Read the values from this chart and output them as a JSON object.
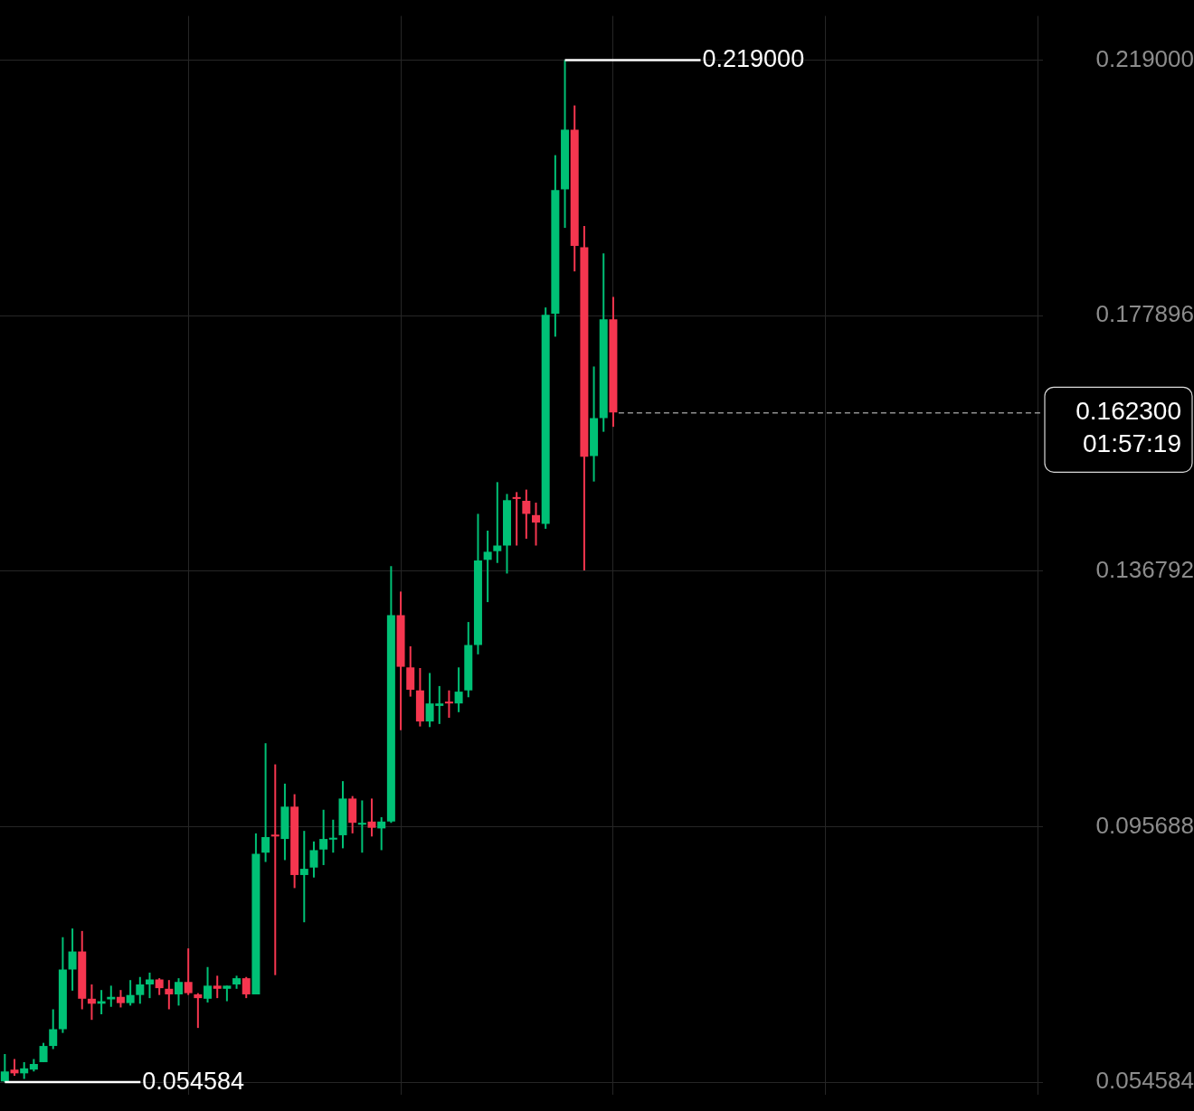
{
  "chart_data": {
    "type": "candlestick",
    "categories": [
      null,
      null,
      null,
      null,
      null,
      null,
      null,
      null,
      null,
      null,
      null,
      null,
      null,
      null,
      null,
      null,
      null,
      null,
      null,
      null,
      null,
      null,
      null,
      null,
      null,
      null,
      null,
      null,
      null,
      null,
      null,
      null,
      null,
      null,
      null,
      null,
      null,
      null,
      null,
      null,
      null,
      null,
      null,
      null,
      null,
      null,
      null,
      null,
      null,
      null,
      null,
      null,
      null,
      null,
      null,
      null,
      null,
      null,
      null,
      null,
      null,
      null,
      null,
      null,
      null,
      null,
      null,
      null,
      null,
      null,
      null,
      null,
      null,
      null,
      null,
      null,
      null,
      null,
      null,
      null,
      null,
      null,
      null,
      null,
      null,
      null,
      null,
      null,
      null,
      null,
      null,
      null,
      null,
      null,
      null,
      null,
      null,
      null,
      null,
      null,
      null,
      null,
      null,
      null,
      null,
      null,
      null,
      null
    ],
    "ohlc": [
      [
        0.0547,
        0.0591,
        0.054584,
        0.0563
      ],
      [
        0.0566,
        0.0583,
        0.0556,
        0.056
      ],
      [
        0.056,
        0.0578,
        0.0551,
        0.0568
      ],
      [
        0.0566,
        0.0583,
        0.0563,
        0.0575
      ],
      [
        0.0578,
        0.0609,
        0.0578,
        0.0604
      ],
      [
        0.0604,
        0.0663,
        0.0599,
        0.0631
      ],
      [
        0.0631,
        0.0779,
        0.0625,
        0.0727
      ],
      [
        0.0727,
        0.0793,
        0.0693,
        0.0756
      ],
      [
        0.0756,
        0.0789,
        0.0663,
        0.068
      ],
      [
        0.068,
        0.0703,
        0.0646,
        0.0672
      ],
      [
        0.0672,
        0.0694,
        0.0655,
        0.0676
      ],
      [
        0.0679,
        0.0701,
        0.0667,
        0.0683
      ],
      [
        0.0683,
        0.0694,
        0.0666,
        0.0673
      ],
      [
        0.0673,
        0.071,
        0.0669,
        0.0686
      ],
      [
        0.0686,
        0.0715,
        0.0672,
        0.0703
      ],
      [
        0.0703,
        0.0722,
        0.0681,
        0.0711
      ],
      [
        0.0711,
        0.0713,
        0.0686,
        0.0697
      ],
      [
        0.0696,
        0.071,
        0.0663,
        0.0687
      ],
      [
        0.0687,
        0.0713,
        0.0669,
        0.0707
      ],
      [
        0.0707,
        0.0761,
        0.0686,
        0.0689
      ],
      [
        0.0687,
        0.0689,
        0.0633,
        0.0681
      ],
      [
        0.068,
        0.0731,
        0.0674,
        0.0701
      ],
      [
        0.0701,
        0.0717,
        0.0681,
        0.0696
      ],
      [
        0.0696,
        0.0701,
        0.0676,
        0.0701
      ],
      [
        0.0703,
        0.0717,
        0.0696,
        0.0713
      ],
      [
        0.0713,
        0.0715,
        0.0681,
        0.0687
      ],
      [
        0.0687,
        0.0946,
        0.0687,
        0.0913
      ],
      [
        0.0915,
        0.1091,
        0.09,
        0.094
      ],
      [
        0.0944,
        0.1057,
        0.0718,
        0.0941
      ],
      [
        0.0937,
        0.1026,
        0.0903,
        0.0989
      ],
      [
        0.0989,
        0.1009,
        0.0858,
        0.0879
      ],
      [
        0.0879,
        0.095,
        0.0803,
        0.0889
      ],
      [
        0.0891,
        0.0933,
        0.0875,
        0.0919
      ],
      [
        0.092,
        0.0984,
        0.0895,
        0.0937
      ],
      [
        0.0936,
        0.0968,
        0.0915,
        0.0939
      ],
      [
        0.0943,
        0.103,
        0.0922,
        0.1002
      ],
      [
        0.1002,
        0.1006,
        0.0946,
        0.0963
      ],
      [
        0.096,
        0.0999,
        0.0915,
        0.0963
      ],
      [
        0.0965,
        0.1002,
        0.0941,
        0.0955
      ],
      [
        0.0954,
        0.0972,
        0.0919,
        0.0965
      ],
      [
        0.0965,
        0.1376,
        0.0963,
        0.1297
      ],
      [
        0.1297,
        0.1335,
        0.1112,
        0.1214
      ],
      [
        0.1213,
        0.1247,
        0.1166,
        0.1177
      ],
      [
        0.1176,
        0.1212,
        0.1118,
        0.1126
      ],
      [
        0.1126,
        0.1204,
        0.1117,
        0.1155
      ],
      [
        0.1151,
        0.1183,
        0.1122,
        0.1155
      ],
      [
        0.1158,
        0.1176,
        0.1132,
        0.1155
      ],
      [
        0.1155,
        0.1213,
        0.1141,
        0.1174
      ],
      [
        0.1176,
        0.1286,
        0.1165,
        0.1249
      ],
      [
        0.1249,
        0.146,
        0.1234,
        0.1385
      ],
      [
        0.1386,
        0.1433,
        0.1318,
        0.1399
      ],
      [
        0.14,
        0.1511,
        0.1381,
        0.1409
      ],
      [
        0.1409,
        0.1492,
        0.1364,
        0.1482
      ],
      [
        0.1487,
        0.1495,
        0.1409,
        0.1484
      ],
      [
        0.1481,
        0.1499,
        0.142,
        0.146
      ],
      [
        0.1458,
        0.1478,
        0.1409,
        0.1446
      ],
      [
        0.1444,
        0.1792,
        0.1436,
        0.178
      ],
      [
        0.1782,
        0.2037,
        0.1745,
        0.1981
      ],
      [
        0.1982,
        0.219,
        0.192,
        0.2078
      ],
      [
        0.2078,
        0.2117,
        0.185,
        0.1891
      ],
      [
        0.1889,
        0.1923,
        0.1369,
        0.1552
      ],
      [
        0.1553,
        0.1697,
        0.1512,
        0.1614
      ],
      [
        0.1614,
        0.1879,
        0.1592,
        0.1773
      ],
      [
        0.1773,
        0.1809,
        0.16,
        0.1623
      ],
      null,
      null,
      null,
      null,
      null,
      null,
      null,
      null,
      null,
      null,
      null,
      null,
      null,
      null,
      null,
      null,
      null,
      null,
      null,
      null,
      null,
      null,
      null,
      null,
      null,
      null,
      null,
      null,
      null,
      null,
      null,
      null,
      null,
      null,
      null,
      null,
      null,
      null,
      null,
      null,
      null,
      null,
      null,
      null
    ],
    "colors": [
      "#00c176",
      "#f5364f",
      "#00c176",
      "#00c176",
      "#00c176",
      "#00c176",
      "#00c176",
      "#00c176",
      "#f5364f",
      "#f5364f",
      "#00c176",
      "#00c176",
      "#f5364f",
      "#00c176",
      "#00c176",
      "#00c176",
      "#f5364f",
      "#f5364f",
      "#00c176",
      "#f5364f",
      "#f5364f",
      "#00c176",
      "#f5364f",
      "#00c176",
      "#00c176",
      "#f5364f",
      "#00c176",
      "#00c176",
      "#f5364f",
      "#00c176",
      "#f5364f",
      "#00c176",
      "#00c176",
      "#00c176",
      "#00c176",
      "#00c176",
      "#f5364f",
      "#00c176",
      "#f5364f",
      "#00c176",
      "#00c176",
      "#f5364f",
      "#f5364f",
      "#f5364f",
      "#00c176",
      "#00c176",
      "#f5364f",
      "#00c176",
      "#00c176",
      "#00c176",
      "#00c176",
      "#00c176",
      "#00c176",
      "#f5364f",
      "#f5364f",
      "#f5364f",
      "#00c176",
      "#00c176",
      "#00c176",
      "#f5364f",
      "#f5364f",
      "#00c176",
      "#00c176",
      "#f5364f",
      null,
      null,
      null,
      null,
      null,
      null,
      null,
      null,
      null,
      null,
      null,
      null,
      null,
      null,
      null,
      null,
      null,
      null,
      null,
      null,
      null,
      null,
      null,
      null,
      null,
      null,
      null,
      null,
      null,
      null,
      null,
      null,
      null,
      null,
      null,
      null,
      null,
      null,
      null,
      null,
      null,
      null,
      null,
      null
    ],
    "ylim": [
      0.0525,
      0.2261
    ],
    "yticks": [
      {
        "value": 0.054584,
        "label": "0.054584"
      },
      {
        "value": 0.095688,
        "label": "0.095688"
      },
      {
        "value": 0.136792,
        "label": "0.136792"
      },
      {
        "value": 0.177896,
        "label": "0.177896"
      },
      {
        "value": 0.219,
        "label": "0.219000"
      }
    ],
    "grid": true,
    "tick_labels": "y",
    "ref_lines": [
      {
        "axis": "y",
        "value": 0.1623,
        "label": "0.162300",
        "color": "#d9d9d9",
        "line_style": "dashed"
      }
    ],
    "annotations": [
      "0.219000",
      "0.054584",
      "01:57:19"
    ]
  }
}
